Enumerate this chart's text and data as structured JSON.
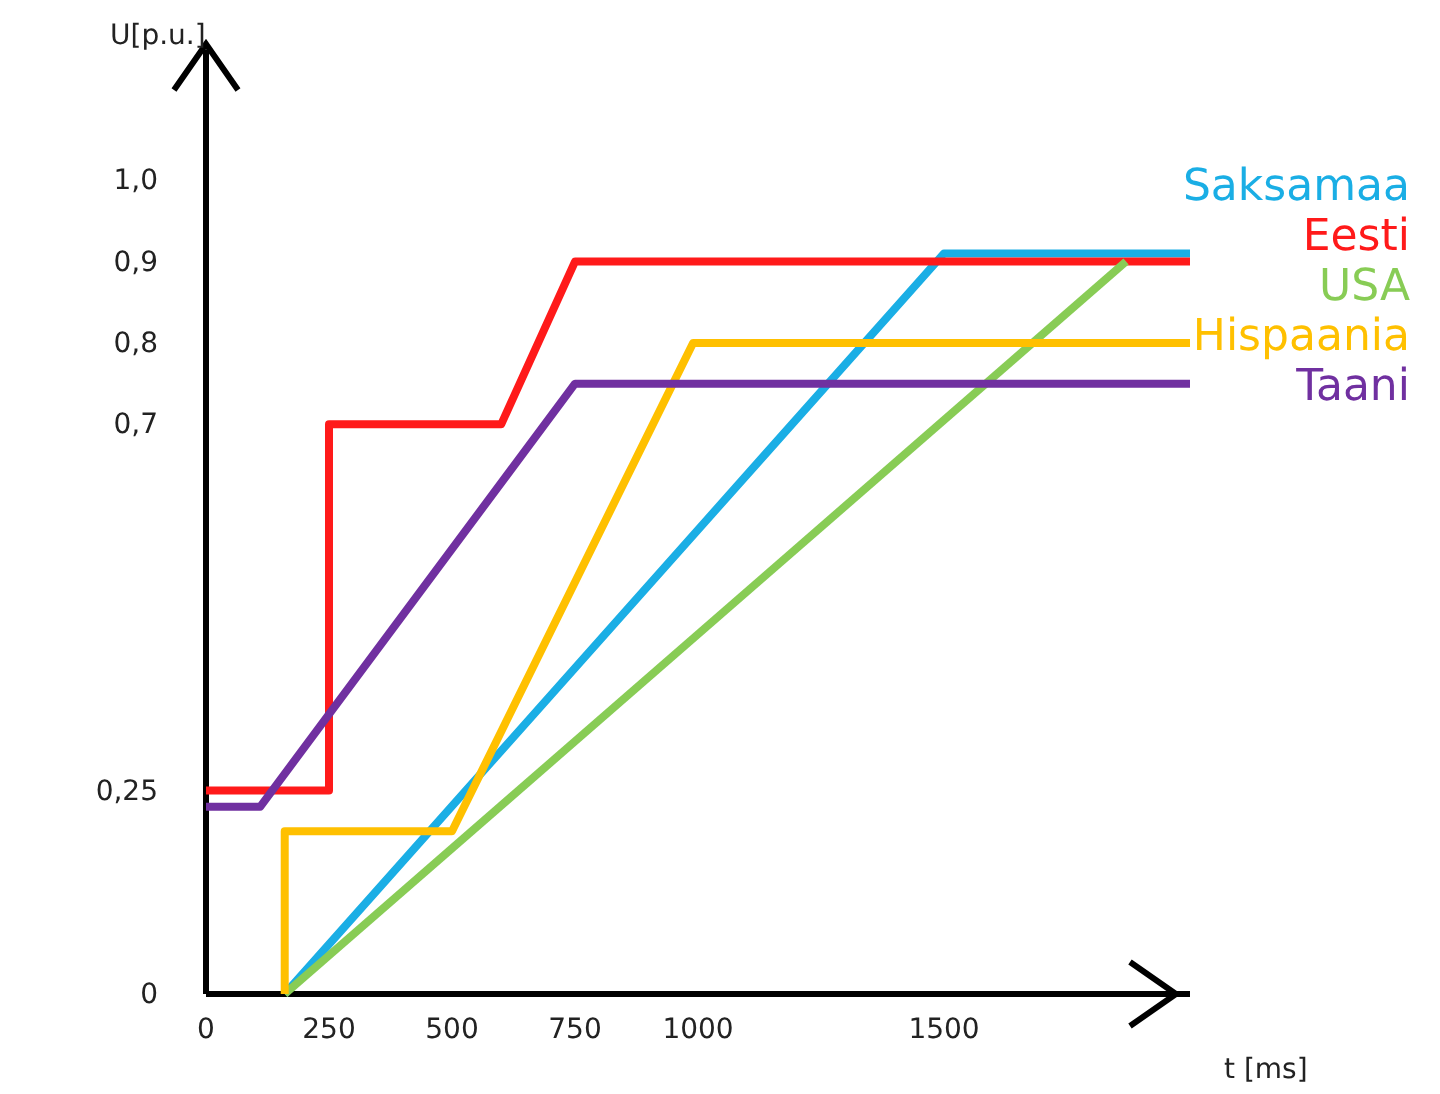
{
  "chart_data": {
    "type": "line",
    "xlabel": "t [ms]",
    "ylabel": "U[p.u.]",
    "xlim": [
      0,
      2000
    ],
    "ylim": [
      0,
      1.16
    ],
    "xticks": [
      0,
      250,
      500,
      750,
      1000,
      1500
    ],
    "yticks": [
      0,
      {
        "value": 0.25,
        "label": "0,25"
      },
      {
        "value": 0.7,
        "label": "0,7"
      },
      {
        "value": 0.8,
        "label": "0,8"
      },
      {
        "value": 0.9,
        "label": "0,9"
      },
      {
        "value": 1.0,
        "label": "1,0"
      }
    ],
    "grid": false,
    "marker": "none",
    "line_style": "solid",
    "legend": "right",
    "series": [
      {
        "name": "Saksamaa",
        "color": "#1aaee5",
        "x": [
          160,
          1500,
          2000
        ],
        "values": [
          0,
          0.91,
          0.91
        ]
      },
      {
        "name": "Eesti",
        "color": "#ff1a1a",
        "x": [
          0,
          250,
          250,
          600,
          750,
          2000
        ],
        "values": [
          0.25,
          0.25,
          0.7,
          0.7,
          0.9,
          0.9
        ]
      },
      {
        "name": "USA",
        "color": "#88cc55",
        "x": [
          160,
          1870
        ],
        "values": [
          0,
          0.9
        ]
      },
      {
        "name": "Hispaania",
        "color": "#ffc000",
        "x": [
          160,
          160,
          500,
          990,
          2000
        ],
        "values": [
          0,
          0.2,
          0.2,
          0.8,
          0.8
        ]
      },
      {
        "name": "Taani",
        "color": "#7030a0",
        "x": [
          0,
          110,
          750,
          2000
        ],
        "values": [
          0.23,
          0.23,
          0.75,
          0.75
        ]
      }
    ]
  }
}
